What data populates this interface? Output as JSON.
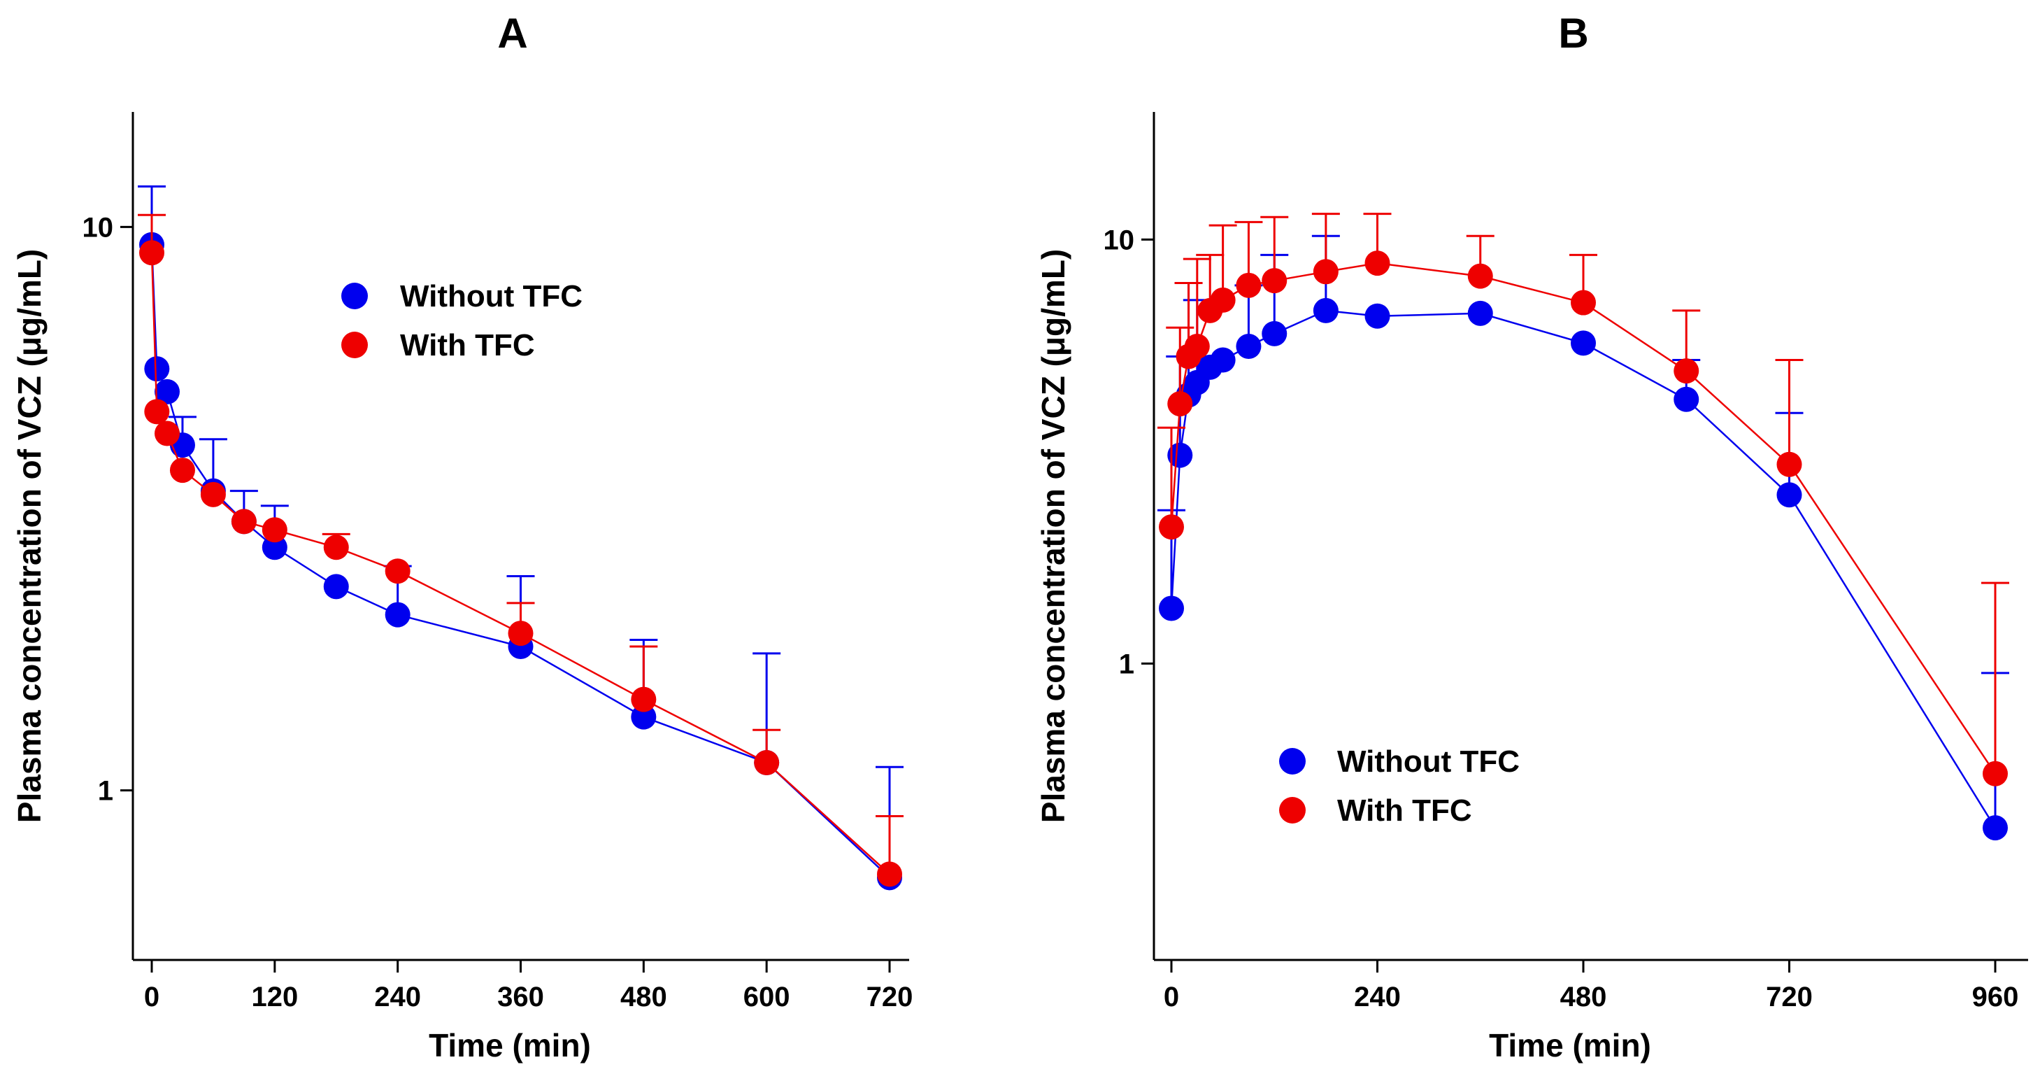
{
  "figure": {
    "background": "#ffffff"
  },
  "chart_data": [
    {
      "panel": "A",
      "type": "line",
      "title": "A",
      "xlabel": "Time (min)",
      "ylabel": "Plasma concentration of VCZ (μg/mL)",
      "xscale": "linear",
      "yscale": "log",
      "xlim": [
        -10,
        740
      ],
      "ylim": [
        0.5,
        16
      ],
      "xticks": [
        0,
        120,
        240,
        360,
        480,
        600,
        720
      ],
      "xtick_labels": [
        "0",
        "120",
        "240",
        "360",
        "480",
        "600",
        "720"
      ],
      "yticks": [
        1,
        10
      ],
      "ytick_labels": [
        "1",
        "10"
      ],
      "legend": {
        "position": "upper-middle",
        "entries": [
          "Without TFC",
          "With TFC"
        ]
      },
      "series": [
        {
          "name": "Without TFC",
          "color": "#0000ee",
          "x": [
            0,
            5,
            15,
            30,
            60,
            90,
            120,
            180,
            240,
            360,
            480,
            600,
            720
          ],
          "y": [
            9.3,
            5.6,
            5.1,
            4.1,
            3.4,
            3.0,
            2.7,
            2.3,
            2.05,
            1.8,
            1.35,
            1.12,
            0.7
          ],
          "err_upper": [
            11.8,
            null,
            null,
            4.6,
            4.2,
            3.4,
            3.2,
            null,
            2.5,
            2.4,
            1.85,
            1.75,
            1.1
          ]
        },
        {
          "name": "With TFC",
          "color": "#ee0000",
          "x": [
            0,
            5,
            15,
            30,
            60,
            90,
            120,
            180,
            240,
            360,
            480,
            600,
            720
          ],
          "y": [
            9.0,
            4.7,
            4.3,
            3.7,
            3.35,
            3.0,
            2.9,
            2.7,
            2.45,
            1.9,
            1.45,
            1.12,
            0.71
          ],
          "err_upper": [
            10.5,
            null,
            null,
            null,
            null,
            null,
            null,
            2.85,
            null,
            2.15,
            1.8,
            1.28,
            0.9
          ]
        }
      ]
    },
    {
      "panel": "B",
      "type": "line",
      "title": "B",
      "xlabel": "Time (min)",
      "ylabel": "Plasma concentration of VCZ (μg/mL)",
      "xscale": "linear",
      "yscale": "log",
      "xlim": [
        -10,
        970
      ],
      "ylim": [
        0.2,
        20
      ],
      "xticks": [
        0,
        240,
        480,
        720,
        960
      ],
      "xtick_labels": [
        "0",
        "240",
        "480",
        "720",
        "960"
      ],
      "yticks": [
        1,
        10
      ],
      "ytick_labels": [
        "1",
        "10"
      ],
      "legend": {
        "position": "lower-left",
        "entries": [
          "Without TFC",
          "With TFC"
        ]
      },
      "series": [
        {
          "name": "Without TFC",
          "color": "#0000ee",
          "x": [
            0,
            10,
            20,
            30,
            45,
            60,
            90,
            120,
            180,
            240,
            360,
            480,
            600,
            720,
            960
          ],
          "y": [
            1.35,
            3.1,
            4.3,
            4.6,
            5.0,
            5.2,
            5.6,
            6.0,
            6.8,
            6.6,
            6.7,
            5.7,
            4.2,
            2.5,
            0.41
          ],
          "err_upper": [
            2.3,
            5.3,
            7.9,
            7.2,
            null,
            null,
            7.8,
            9.2,
            10.2,
            null,
            null,
            null,
            5.2,
            3.9,
            0.95
          ]
        },
        {
          "name": "With TFC",
          "color": "#ee0000",
          "x": [
            0,
            10,
            20,
            30,
            45,
            60,
            90,
            120,
            180,
            240,
            360,
            480,
            600,
            720,
            960
          ],
          "y": [
            2.1,
            4.1,
            5.3,
            5.6,
            6.8,
            7.2,
            7.8,
            8.0,
            8.4,
            8.8,
            8.2,
            7.1,
            4.9,
            2.95,
            0.55
          ],
          "err_upper": [
            3.6,
            6.2,
            7.9,
            9.0,
            9.2,
            10.8,
            11.0,
            11.3,
            11.5,
            11.5,
            10.2,
            9.2,
            6.8,
            5.2,
            1.55
          ]
        }
      ]
    }
  ]
}
